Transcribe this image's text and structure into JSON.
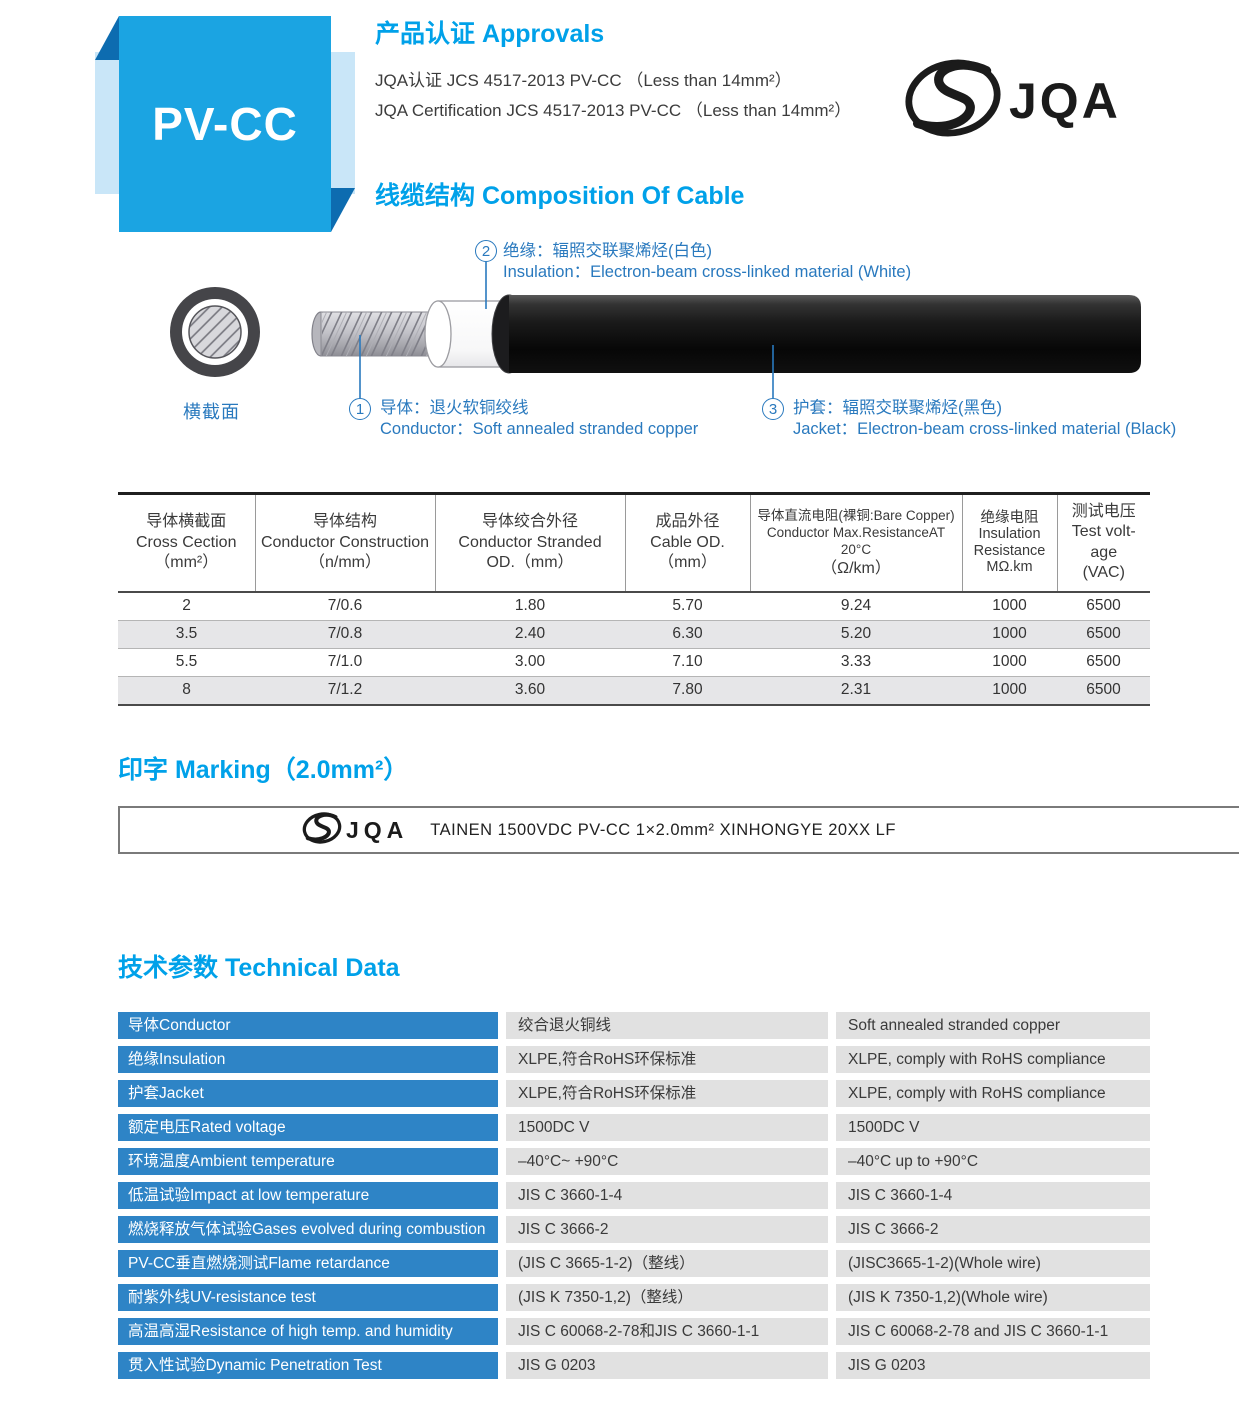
{
  "badge": {
    "title": "PV-CC"
  },
  "colors": {
    "heading_blue": "#00a1e9",
    "callout_blue": "#2979be",
    "badge_blue": "#1ba4e2",
    "badge_light_blue": "#c9e6f8",
    "badge_dark_blue": "#0d6cb0",
    "tech_label_blue": "#2e84c6",
    "tech_value_gray": "#e1e1e1"
  },
  "approvals": {
    "heading": "产品认证 Approvals",
    "line1": "JQA认证  JCS 4517-2013  PV-CC （Less than 14mm²）",
    "line2": "JQA Certification  JCS 4517-2013  PV-CC （Less than 14mm²）"
  },
  "logo": {
    "text": "JQA"
  },
  "composition": {
    "heading": "线缆结构 Composition Of Cable",
    "cross_section_label": "横截面",
    "callouts": [
      {
        "num": "1",
        "zh": "导体：退火软铜绞线",
        "en": "Conductor：Soft annealed stranded copper"
      },
      {
        "num": "2",
        "zh": "绝缘：辐照交联聚烯烃(白色)",
        "en": "Insulation：Electron-beam cross-linked material (White)"
      },
      {
        "num": "3",
        "zh": "护套：辐照交联聚烯烃(黑色)",
        "en": "Jacket：Electron-beam cross-linked material (Black)"
      }
    ]
  },
  "spec_table": {
    "columns": [
      {
        "lines": [
          "导体横截面",
          "Cross Cection",
          "（mm²）"
        ]
      },
      {
        "lines": [
          "导体结构",
          "Conductor Construction",
          "（n/mm）"
        ]
      },
      {
        "lines": [
          "导体绞合外径",
          "Conductor Stranded",
          "OD.（mm）"
        ]
      },
      {
        "lines": [
          "成品外径",
          "Cable OD.",
          "（mm）"
        ]
      },
      {
        "lines": [
          "导体直流电阻(裸铜:Bare Copper)",
          "Conductor Max.ResistanceAT 20°C",
          "（Ω/km）"
        ]
      },
      {
        "lines": [
          "绝缘电阻",
          "Insulation",
          "Resistance",
          "MΩ.km"
        ]
      },
      {
        "lines": [
          "测试电压",
          "Test volt-age",
          "(VAC)"
        ]
      }
    ],
    "rows": [
      [
        "2",
        "7/0.6",
        "1.80",
        "5.70",
        "9.24",
        "1000",
        "6500"
      ],
      [
        "3.5",
        "7/0.8",
        "2.40",
        "6.30",
        "5.20",
        "1000",
        "6500"
      ],
      [
        "5.5",
        "7/1.0",
        "3.00",
        "7.10",
        "3.33",
        "1000",
        "6500"
      ],
      [
        "8",
        "7/1.2",
        "3.60",
        "7.80",
        "2.31",
        "1000",
        "6500"
      ]
    ]
  },
  "marking": {
    "heading": "印字 Marking（2.0mm²）",
    "logo_text": "JQA",
    "text": "TAINEN  1500VDC  PV-CC  1×2.0mm²  XINHONGYE  20XX  LF"
  },
  "technical": {
    "heading": "技术参数 Technical Data",
    "rows": [
      {
        "label": "导体Conductor",
        "cn": "绞合退火铜线",
        "en": "Soft annealed stranded copper"
      },
      {
        "label": "绝缘Insulation",
        "cn": "XLPE,符合RoHS环保标准",
        "en": "XLPE, comply with RoHS compliance"
      },
      {
        "label": "护套Jacket",
        "cn": "XLPE,符合RoHS环保标准",
        "en": "XLPE, comply with RoHS compliance"
      },
      {
        "label": "额定电压Rated voltage",
        "cn": "1500DC V",
        "en": "1500DC V"
      },
      {
        "label": "环境温度Ambient temperature",
        "cn": "–40°C~ +90°C",
        "en": "–40°C  up to  +90°C"
      },
      {
        "label": "低温试验Impact at low temperature",
        "cn": "JIS C 3660-1-4",
        "en": "JIS C 3660-1-4"
      },
      {
        "label": "燃烧释放气体试验Gases evolved during combustion",
        "cn": "JIS C 3666-2",
        "en": "JIS C 3666-2"
      },
      {
        "label": "PV-CC垂直燃烧测试Flame retardance",
        "cn": "(JIS C 3665-1-2)（整线）",
        "en": "(JISC3665-1-2)(Whole wire)"
      },
      {
        "label": "耐紫外线UV-resistance test",
        "cn": "(JIS K 7350-1,2)（整线）",
        "en": "(JIS K 7350-1,2)(Whole wire)"
      },
      {
        "label": "高温高湿Resistance of high temp. and humidity",
        "cn": "JIS C 60068-2-78和JIS C 3660-1-1",
        "en": "JIS C 60068-2-78  and JIS C 3660-1-1"
      },
      {
        "label": "贯入性试验Dynamic Penetration Test",
        "cn": "JIS G 0203",
        "en": "JIS G 0203"
      }
    ]
  }
}
